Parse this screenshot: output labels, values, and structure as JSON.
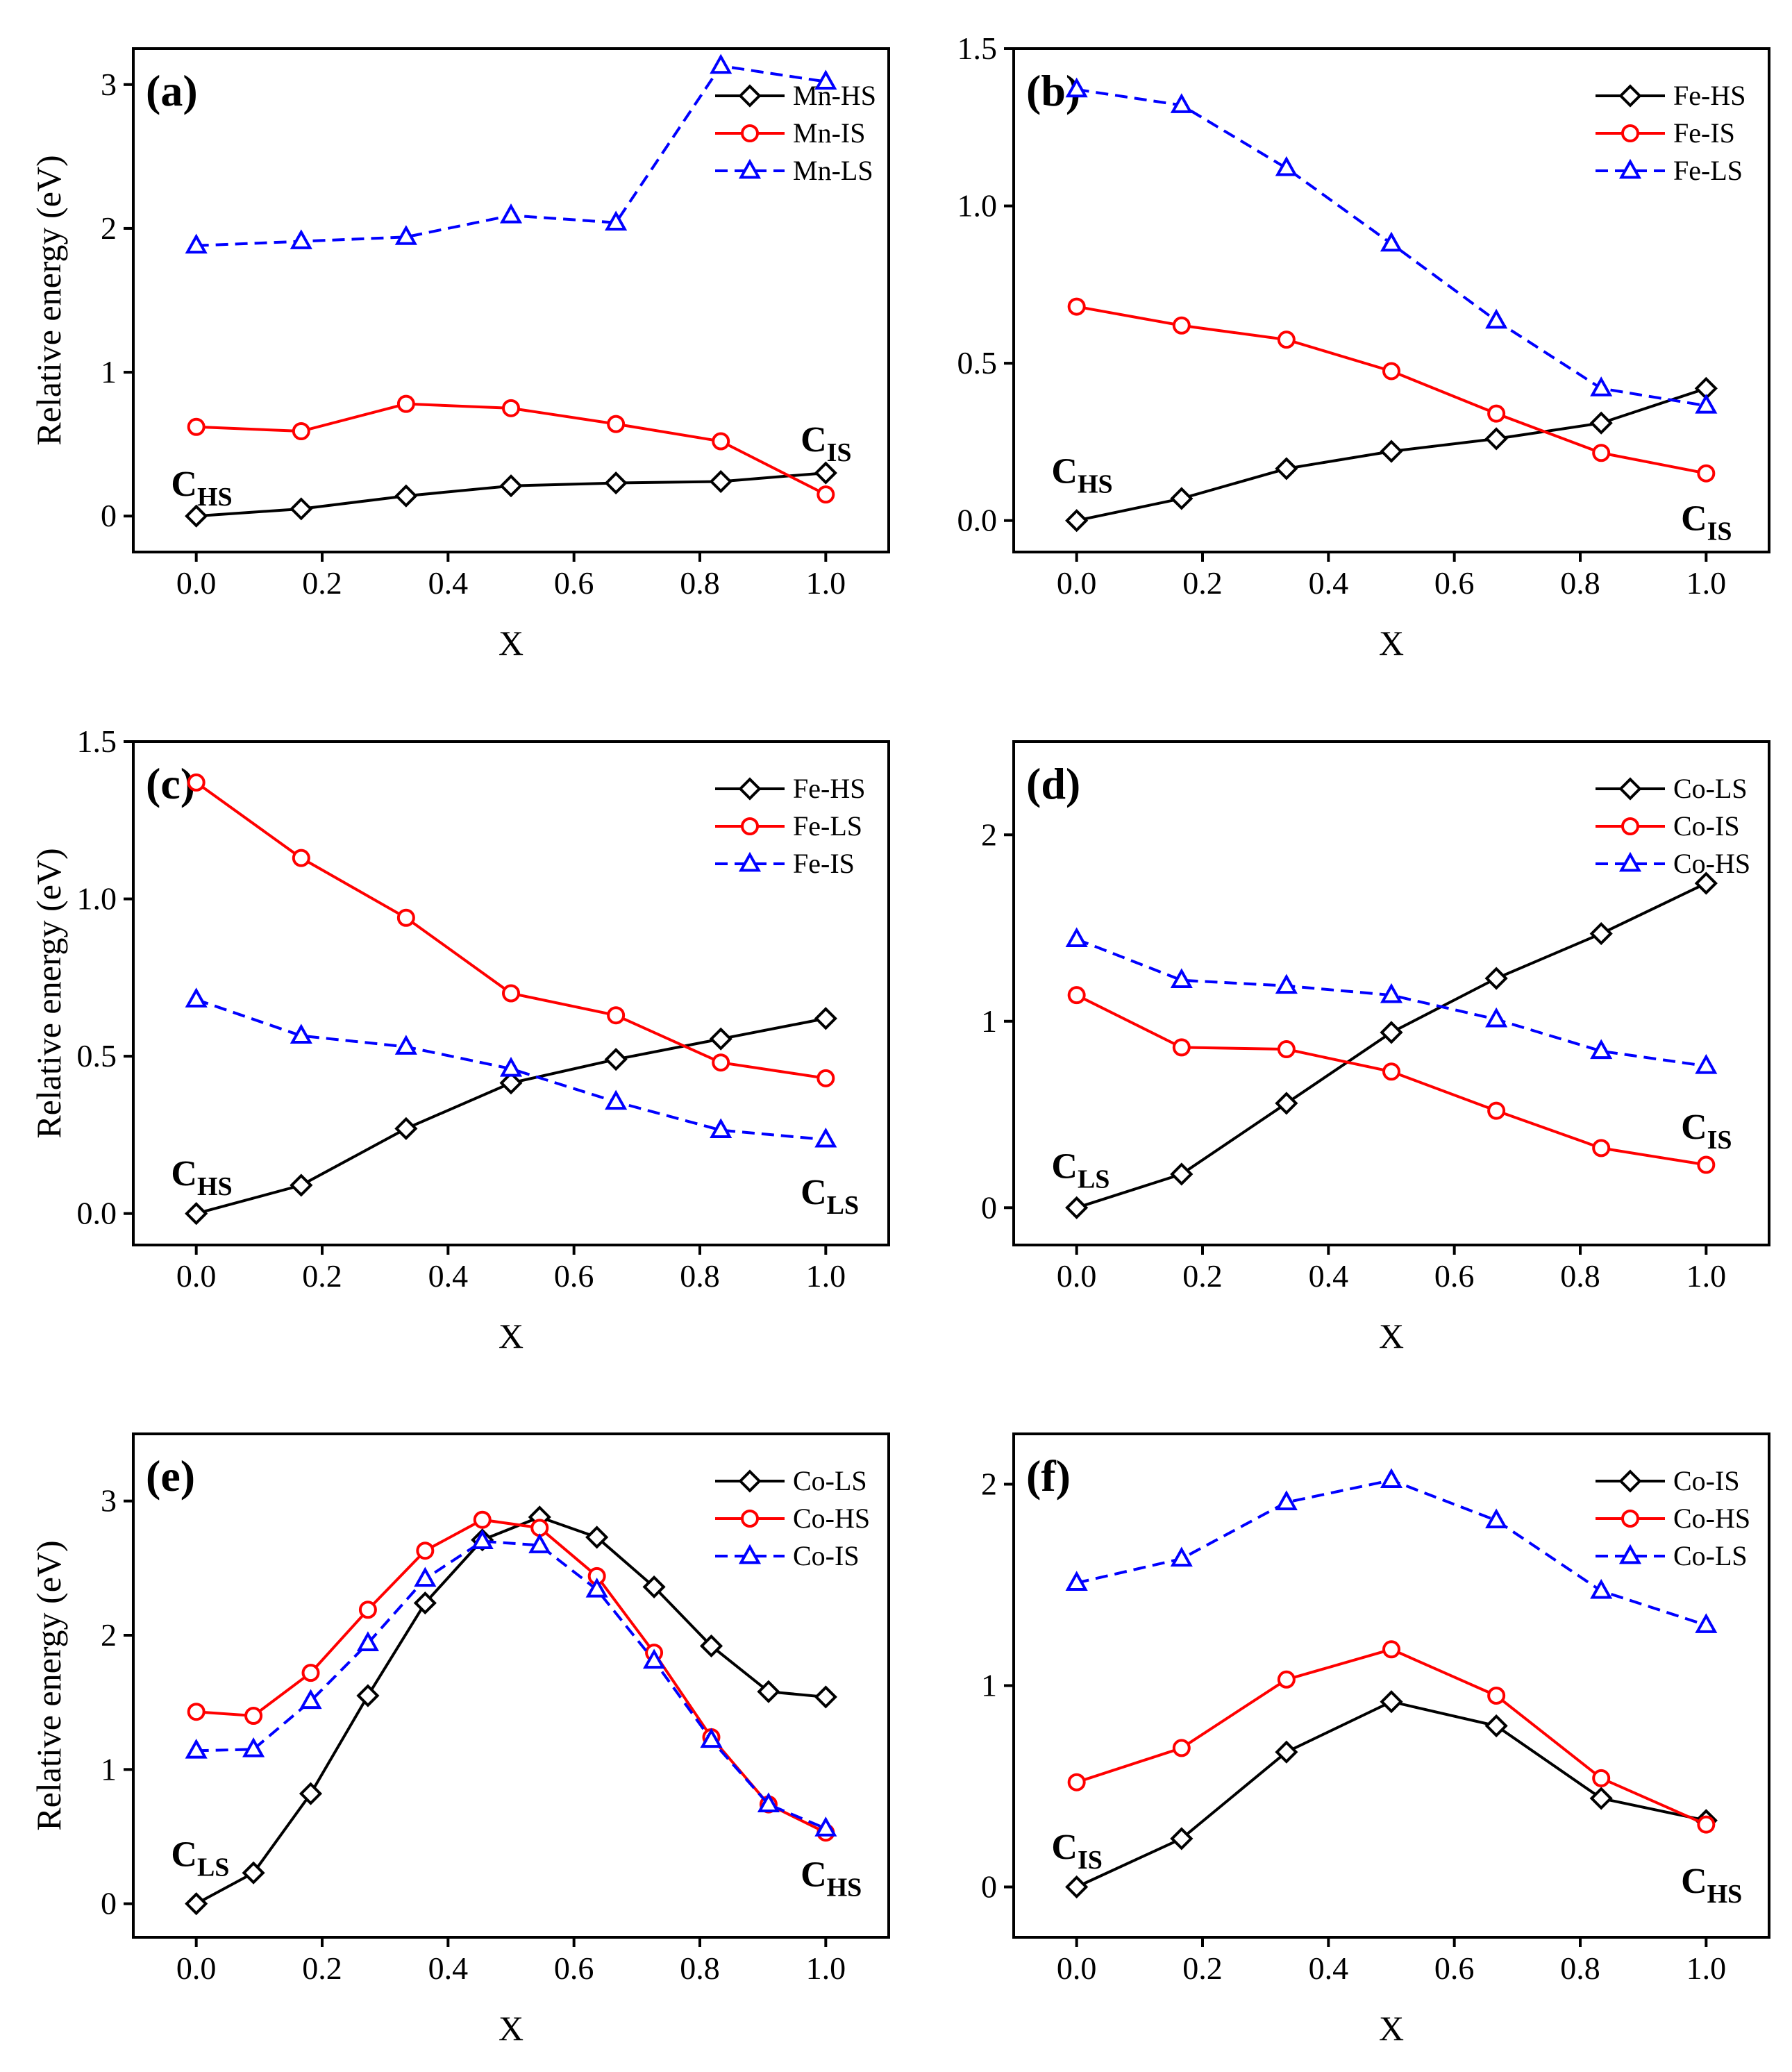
{
  "chart_data": [
    {
      "type": "line",
      "panel_label": "(a)",
      "xlabel": "X",
      "ylabel": "Relative energy (eV)",
      "xlim": [
        -0.1,
        1.1
      ],
      "ylim": [
        -0.25,
        3.25
      ],
      "xticks": [
        0.0,
        0.2,
        0.4,
        0.6,
        0.8,
        1.0
      ],
      "xtick_labels": [
        "0.0",
        "0.2",
        "0.4",
        "0.6",
        "0.8",
        "1.0"
      ],
      "yticks": [
        0,
        1,
        2,
        3
      ],
      "ytick_labels": [
        "0",
        "1",
        "2",
        "3"
      ],
      "legend": "top-right",
      "series": [
        {
          "name": "Mn-HS",
          "color": "#000000",
          "marker": "diamond",
          "dash": "solid",
          "x": [
            0,
            0.1667,
            0.3333,
            0.5,
            0.6667,
            0.8333,
            1.0
          ],
          "values": [
            0,
            0.05,
            0.14,
            0.21,
            0.23,
            0.24,
            0.3
          ]
        },
        {
          "name": "Mn-IS",
          "color": "#ff0000",
          "marker": "circle",
          "dash": "solid",
          "x": [
            0,
            0.1667,
            0.3333,
            0.5,
            0.6667,
            0.8333,
            1.0
          ],
          "values": [
            0.62,
            0.59,
            0.78,
            0.75,
            0.64,
            0.52,
            0.15
          ]
        },
        {
          "name": "Mn-LS",
          "color": "#0000ff",
          "marker": "triangle",
          "dash": "dashed",
          "x": [
            0,
            0.1667,
            0.3333,
            0.5,
            0.6667,
            0.8333,
            1.0
          ],
          "values": [
            1.88,
            1.91,
            1.94,
            2.09,
            2.04,
            3.13,
            3.02
          ]
        }
      ],
      "annotations": [
        {
          "main": "C",
          "sub": "HS",
          "at": [
            -0.04,
            0.14
          ]
        },
        {
          "main": "C",
          "sub": "IS",
          "at": [
            0.96,
            0.45
          ]
        }
      ]
    },
    {
      "type": "line",
      "panel_label": "(b)",
      "xlabel": "X",
      "ylabel": "",
      "xlim": [
        -0.1,
        1.1
      ],
      "ylim": [
        -0.1,
        1.5
      ],
      "xticks": [
        0.0,
        0.2,
        0.4,
        0.6,
        0.8,
        1.0
      ],
      "xtick_labels": [
        "0.0",
        "0.2",
        "0.4",
        "0.6",
        "0.8",
        "1.0"
      ],
      "yticks": [
        0.0,
        0.5,
        1.0,
        1.5
      ],
      "ytick_labels": [
        "0.0",
        "0.5",
        "1.0",
        "1.5"
      ],
      "legend": "top-right",
      "series": [
        {
          "name": "Fe-HS",
          "color": "#000000",
          "marker": "diamond",
          "dash": "solid",
          "x": [
            0,
            0.1667,
            0.3333,
            0.5,
            0.6667,
            0.8333,
            1.0
          ],
          "values": [
            0,
            0.07,
            0.165,
            0.22,
            0.26,
            0.31,
            0.42
          ]
        },
        {
          "name": "Fe-IS",
          "color": "#ff0000",
          "marker": "circle",
          "dash": "solid",
          "x": [
            0,
            0.1667,
            0.3333,
            0.5,
            0.6667,
            0.8333,
            1.0
          ],
          "values": [
            0.68,
            0.62,
            0.575,
            0.475,
            0.34,
            0.215,
            0.15
          ]
        },
        {
          "name": "Fe-LS",
          "color": "#0000ff",
          "marker": "triangle",
          "dash": "dashed",
          "x": [
            0,
            0.1667,
            0.3333,
            0.5,
            0.6667,
            0.8333,
            1.0
          ],
          "values": [
            1.37,
            1.32,
            1.12,
            0.88,
            0.635,
            0.42,
            0.365
          ]
        }
      ],
      "annotations": [
        {
          "main": "C",
          "sub": "HS",
          "at": [
            -0.04,
            0.12
          ]
        },
        {
          "main": "C",
          "sub": "IS",
          "at": [
            0.96,
            -0.03
          ]
        }
      ]
    },
    {
      "type": "line",
      "panel_label": "(c)",
      "xlabel": "X",
      "ylabel": "Relative energy (eV)",
      "xlim": [
        -0.1,
        1.1
      ],
      "ylim": [
        -0.1,
        1.5
      ],
      "xticks": [
        0.0,
        0.2,
        0.4,
        0.6,
        0.8,
        1.0
      ],
      "xtick_labels": [
        "0.0",
        "0.2",
        "0.4",
        "0.6",
        "0.8",
        "1.0"
      ],
      "yticks": [
        0.0,
        0.5,
        1.0,
        1.5
      ],
      "ytick_labels": [
        "0.0",
        "0.5",
        "1.0",
        "1.5"
      ],
      "legend": "top-right",
      "series": [
        {
          "name": "Fe-HS",
          "color": "#000000",
          "marker": "diamond",
          "dash": "solid",
          "x": [
            0,
            0.1667,
            0.3333,
            0.5,
            0.6667,
            0.8333,
            1.0
          ],
          "values": [
            0,
            0.09,
            0.27,
            0.415,
            0.49,
            0.555,
            0.62
          ]
        },
        {
          "name": "Fe-LS",
          "color": "#ff0000",
          "marker": "circle",
          "dash": "solid",
          "x": [
            0,
            0.1667,
            0.3333,
            0.5,
            0.6667,
            0.8333,
            1.0
          ],
          "values": [
            1.37,
            1.13,
            0.94,
            0.7,
            0.63,
            0.48,
            0.43
          ]
        },
        {
          "name": "Fe-IS",
          "color": "#0000ff",
          "marker": "triangle",
          "dash": "dashed",
          "x": [
            0,
            0.1667,
            0.3333,
            0.5,
            0.6667,
            0.8333,
            1.0
          ],
          "values": [
            0.68,
            0.565,
            0.53,
            0.46,
            0.355,
            0.265,
            0.235
          ]
        }
      ],
      "annotations": [
        {
          "main": "C",
          "sub": "HS",
          "at": [
            -0.04,
            0.09
          ]
        },
        {
          "main": "C",
          "sub": "LS",
          "at": [
            0.96,
            0.03
          ]
        }
      ]
    },
    {
      "type": "line",
      "panel_label": "(d)",
      "xlabel": "X",
      "ylabel": "",
      "xlim": [
        -0.1,
        1.1
      ],
      "ylim": [
        -0.2,
        2.5
      ],
      "xticks": [
        0.0,
        0.2,
        0.4,
        0.6,
        0.8,
        1.0
      ],
      "xtick_labels": [
        "0.0",
        "0.2",
        "0.4",
        "0.6",
        "0.8",
        "1.0"
      ],
      "yticks": [
        0,
        1,
        2
      ],
      "ytick_labels": [
        "0",
        "1",
        "2"
      ],
      "legend": "top-right",
      "series": [
        {
          "name": "Co-LS",
          "color": "#000000",
          "marker": "diamond",
          "dash": "solid",
          "x": [
            0,
            0.1667,
            0.3333,
            0.5,
            0.6667,
            0.8333,
            1.0
          ],
          "values": [
            0,
            0.18,
            0.56,
            0.94,
            1.23,
            1.47,
            1.74
          ]
        },
        {
          "name": "Co-IS",
          "color": "#ff0000",
          "marker": "circle",
          "dash": "solid",
          "x": [
            0,
            0.1667,
            0.3333,
            0.5,
            0.6667,
            0.8333,
            1.0
          ],
          "values": [
            1.14,
            0.86,
            0.85,
            0.73,
            0.52,
            0.32,
            0.23
          ]
        },
        {
          "name": "Co-HS",
          "color": "#0000ff",
          "marker": "triangle",
          "dash": "dashed",
          "x": [
            0,
            0.1667,
            0.3333,
            0.5,
            0.6667,
            0.8333,
            1.0
          ],
          "values": [
            1.44,
            1.22,
            1.19,
            1.14,
            1.01,
            0.84,
            0.76
          ]
        }
      ],
      "annotations": [
        {
          "main": "C",
          "sub": "LS",
          "at": [
            -0.04,
            0.16
          ]
        },
        {
          "main": "C",
          "sub": "IS",
          "at": [
            0.96,
            0.37
          ]
        }
      ]
    },
    {
      "type": "line",
      "panel_label": "(e)",
      "xlabel": "X",
      "ylabel": "Relative energy (eV)",
      "xlim": [
        -0.1,
        1.1
      ],
      "ylim": [
        -0.25,
        3.5
      ],
      "xticks": [
        0.0,
        0.2,
        0.4,
        0.6,
        0.8,
        1.0
      ],
      "xtick_labels": [
        "0.0",
        "0.2",
        "0.4",
        "0.6",
        "0.8",
        "1.0"
      ],
      "yticks": [
        0,
        1,
        2,
        3
      ],
      "ytick_labels": [
        "0",
        "1",
        "2",
        "3"
      ],
      "legend": "top-right",
      "series": [
        {
          "name": "Co-LS",
          "color": "#000000",
          "marker": "diamond",
          "dash": "solid",
          "x": [
            0,
            0.0909,
            0.1818,
            0.2727,
            0.3636,
            0.4545,
            0.5455,
            0.6364,
            0.7273,
            0.8182,
            0.9091,
            1.0
          ],
          "values": [
            0,
            0.23,
            0.82,
            1.55,
            2.24,
            2.71,
            2.88,
            2.73,
            2.36,
            1.92,
            1.58,
            1.54
          ]
        },
        {
          "name": "Co-HS",
          "color": "#ff0000",
          "marker": "circle",
          "dash": "solid",
          "x": [
            0,
            0.0909,
            0.1818,
            0.2727,
            0.3636,
            0.4545,
            0.5455,
            0.6364,
            0.7273,
            0.8182,
            0.9091,
            1.0
          ],
          "values": [
            1.43,
            1.4,
            1.72,
            2.19,
            2.63,
            2.86,
            2.8,
            2.44,
            1.87,
            1.24,
            0.74,
            0.53
          ]
        },
        {
          "name": "Co-IS",
          "color": "#0000ff",
          "marker": "triangle",
          "dash": "dashed",
          "x": [
            0,
            0.0909,
            0.1818,
            0.2727,
            0.3636,
            0.4545,
            0.5455,
            0.6364,
            0.7273,
            0.8182,
            0.9091,
            1.0
          ],
          "values": [
            1.14,
            1.15,
            1.51,
            1.94,
            2.42,
            2.7,
            2.67,
            2.34,
            1.81,
            1.22,
            0.74,
            0.56
          ]
        }
      ],
      "annotations": [
        {
          "main": "C",
          "sub": "LS",
          "at": [
            -0.04,
            0.28
          ]
        },
        {
          "main": "C",
          "sub": "HS",
          "at": [
            0.96,
            0.13
          ]
        }
      ]
    },
    {
      "type": "line",
      "panel_label": "(f)",
      "xlabel": "X",
      "ylabel": "",
      "xlim": [
        -0.1,
        1.1
      ],
      "ylim": [
        -0.25,
        2.25
      ],
      "xticks": [
        0.0,
        0.2,
        0.4,
        0.6,
        0.8,
        1.0
      ],
      "xtick_labels": [
        "0.0",
        "0.2",
        "0.4",
        "0.6",
        "0.8",
        "1.0"
      ],
      "yticks": [
        0,
        1,
        2
      ],
      "ytick_labels": [
        "0",
        "1",
        "2"
      ],
      "legend": "top-right",
      "series": [
        {
          "name": "Co-IS",
          "color": "#000000",
          "marker": "diamond",
          "dash": "solid",
          "x": [
            0,
            0.1667,
            0.3333,
            0.5,
            0.6667,
            0.8333,
            1.0
          ],
          "values": [
            0,
            0.24,
            0.67,
            0.92,
            0.8,
            0.44,
            0.33
          ]
        },
        {
          "name": "Co-HS",
          "color": "#ff0000",
          "marker": "circle",
          "dash": "solid",
          "x": [
            0,
            0.1667,
            0.3333,
            0.5,
            0.6667,
            0.8333,
            1.0
          ],
          "values": [
            0.52,
            0.69,
            1.03,
            1.18,
            0.95,
            0.54,
            0.31
          ]
        },
        {
          "name": "Co-LS",
          "color": "#0000ff",
          "marker": "triangle",
          "dash": "dashed",
          "x": [
            0,
            0.1667,
            0.3333,
            0.5,
            0.6667,
            0.8333,
            1.0
          ],
          "values": [
            1.51,
            1.63,
            1.91,
            2.02,
            1.82,
            1.47,
            1.3
          ]
        }
      ],
      "annotations": [
        {
          "main": "C",
          "sub": "IS",
          "at": [
            -0.04,
            0.14
          ]
        },
        {
          "main": "C",
          "sub": "HS",
          "at": [
            0.96,
            -0.03
          ]
        }
      ]
    }
  ]
}
